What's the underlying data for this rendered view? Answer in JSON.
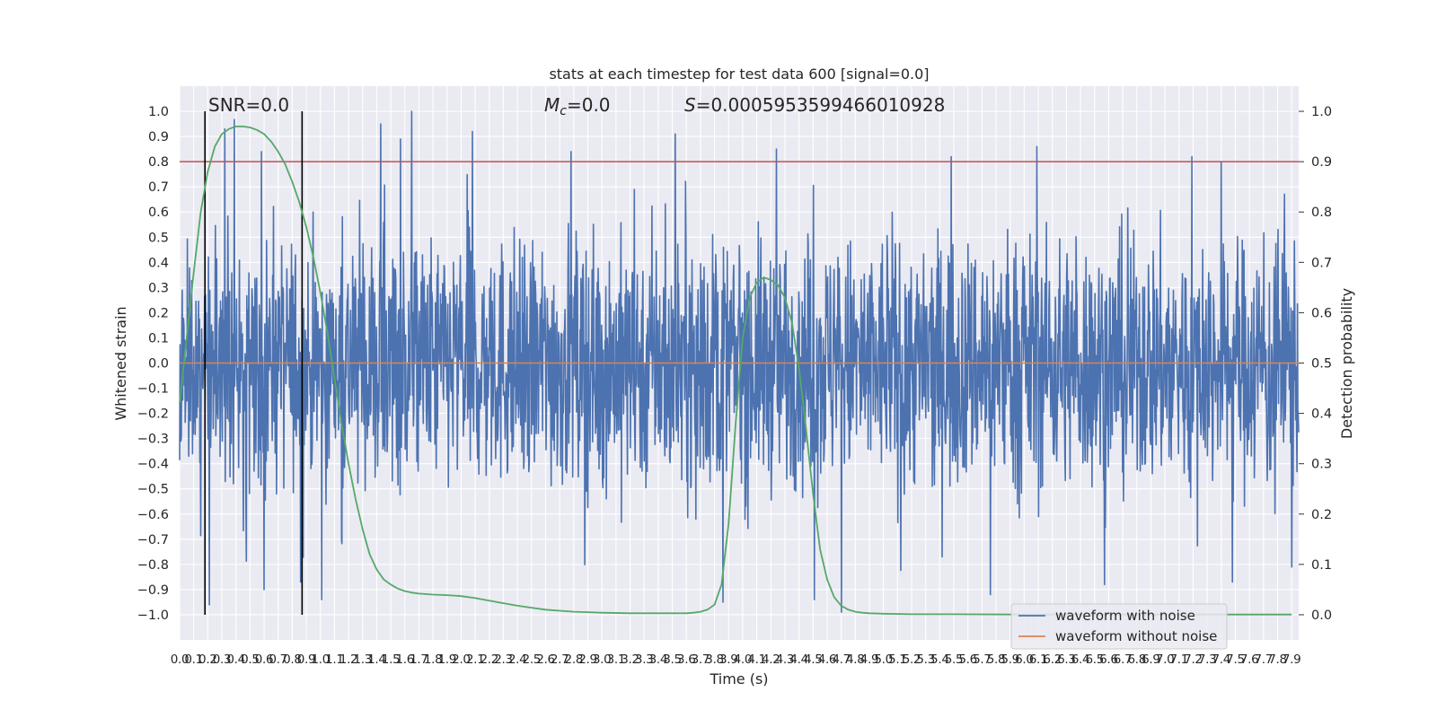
{
  "chart_data": {
    "type": "line",
    "title": "stats at each timestep for test data 600 [signal=0.0]",
    "xlabel": "Time (s)",
    "ylabel": "Whitened strain",
    "ylabel_right": "Detection probability",
    "xlim": [
      0.0,
      7.95
    ],
    "ylim": [
      -1.1,
      1.1
    ],
    "ylim_right": [
      -0.05,
      1.05
    ],
    "grid": true,
    "legend_placement": "lower right",
    "x_ticks": [
      0.0,
      0.1,
      0.2,
      0.3,
      0.4,
      0.5,
      0.6,
      0.7,
      0.8,
      0.9,
      1.0,
      1.1,
      1.2,
      1.3,
      1.4,
      1.5,
      1.6,
      1.7,
      1.8,
      1.9,
      2.0,
      2.1,
      2.2,
      2.3,
      2.4,
      2.5,
      2.6,
      2.7,
      2.8,
      2.9,
      3.0,
      3.1,
      3.2,
      3.3,
      3.4,
      3.5,
      3.6,
      3.7,
      3.8,
      3.9,
      4.0,
      4.1,
      4.2,
      4.3,
      4.4,
      4.5,
      4.6,
      4.7,
      4.8,
      4.9,
      5.0,
      5.1,
      5.2,
      5.3,
      5.4,
      5.5,
      5.6,
      5.7,
      5.8,
      5.9,
      6.0,
      6.1,
      6.2,
      6.3,
      6.4,
      6.5,
      6.6,
      6.7,
      6.8,
      6.9,
      7.0,
      7.1,
      7.2,
      7.3,
      7.4,
      7.5,
      7.6,
      7.7,
      7.8,
      7.9
    ],
    "y_ticks": [
      -1.0,
      -0.9,
      -0.8,
      -0.7,
      -0.6,
      -0.5,
      -0.4,
      -0.3,
      -0.2,
      -0.1,
      0.0,
      0.1,
      0.2,
      0.3,
      0.4,
      0.5,
      0.6,
      0.7,
      0.8,
      0.9,
      1.0
    ],
    "y_ticks_right": [
      0.0,
      0.1,
      0.2,
      0.3,
      0.4,
      0.5,
      0.6,
      0.7,
      0.8,
      0.9,
      1.0
    ],
    "annotations": {
      "snr": "SNR=0.0",
      "mc": "=0.0",
      "mc_symbol": "M",
      "mc_subscript": "c",
      "s_symbol": "S",
      "s": "=0.0005953599466010928"
    },
    "threshold": {
      "value": 0.9,
      "axis": "right",
      "color": "#c44e52"
    },
    "vlines": {
      "x": [
        0.18,
        0.87
      ],
      "ymin": -1.0,
      "ymax": 1.0,
      "color": "#000000"
    },
    "series": [
      {
        "name": "waveform with noise",
        "color": "#4c72b0",
        "axis": "left",
        "description": "dense white noise sampled densely across 0-7.95 s, core amplitude ~±0.35, spikes reaching about ±1.0",
        "peak_spikes": [
          {
            "x": 0.32,
            "y": 0.93
          },
          {
            "x": 0.58,
            "y": 0.84
          },
          {
            "x": 1.43,
            "y": 0.95
          },
          {
            "x": 1.57,
            "y": 0.89
          },
          {
            "x": 1.65,
            "y": 1.0
          },
          {
            "x": 2.08,
            "y": 0.92
          },
          {
            "x": 2.78,
            "y": 0.84
          },
          {
            "x": 3.52,
            "y": 0.91
          },
          {
            "x": 4.24,
            "y": 0.85
          },
          {
            "x": 5.48,
            "y": 0.82
          },
          {
            "x": 6.09,
            "y": 0.86
          },
          {
            "x": 7.19,
            "y": 0.82
          },
          {
            "x": 0.21,
            "y": -0.96
          },
          {
            "x": 0.6,
            "y": -0.9
          },
          {
            "x": 0.86,
            "y": -0.87
          },
          {
            "x": 1.01,
            "y": -0.94
          },
          {
            "x": 3.86,
            "y": -0.95
          },
          {
            "x": 4.51,
            "y": -0.94
          },
          {
            "x": 4.7,
            "y": -0.99
          },
          {
            "x": 5.76,
            "y": -0.92
          },
          {
            "x": 6.57,
            "y": -0.88
          },
          {
            "x": 7.48,
            "y": -0.87
          },
          {
            "x": 7.9,
            "y": -0.81
          }
        ]
      },
      {
        "name": "waveform without noise",
        "color": "#dd8452",
        "axis": "left",
        "x": [
          0.0,
          7.95
        ],
        "y": [
          0.0,
          0.0
        ]
      },
      {
        "name": "",
        "color": "#55a868",
        "axis": "right",
        "x": [
          0.0,
          0.05,
          0.1,
          0.15,
          0.2,
          0.25,
          0.3,
          0.35,
          0.4,
          0.45,
          0.5,
          0.55,
          0.6,
          0.65,
          0.7,
          0.75,
          0.8,
          0.85,
          0.9,
          0.95,
          1.0,
          1.05,
          1.1,
          1.15,
          1.2,
          1.25,
          1.3,
          1.35,
          1.4,
          1.45,
          1.5,
          1.55,
          1.6,
          1.65,
          1.7,
          1.8,
          1.9,
          2.0,
          2.1,
          2.2,
          2.3,
          2.4,
          2.5,
          2.6,
          2.7,
          2.8,
          2.9,
          3.0,
          3.2,
          3.4,
          3.6,
          3.65,
          3.7,
          3.75,
          3.8,
          3.85,
          3.9,
          3.95,
          4.0,
          4.05,
          4.1,
          4.15,
          4.2,
          4.25,
          4.3,
          4.35,
          4.4,
          4.45,
          4.5,
          4.55,
          4.6,
          4.65,
          4.7,
          4.75,
          4.8,
          4.85,
          4.9,
          5.0,
          5.2,
          5.5,
          6.0,
          6.5,
          7.0,
          7.5,
          7.9
        ],
        "y": [
          0.42,
          0.55,
          0.68,
          0.8,
          0.88,
          0.93,
          0.955,
          0.965,
          0.97,
          0.97,
          0.968,
          0.963,
          0.955,
          0.94,
          0.92,
          0.895,
          0.86,
          0.82,
          0.77,
          0.71,
          0.64,
          0.56,
          0.47,
          0.38,
          0.3,
          0.23,
          0.17,
          0.12,
          0.09,
          0.07,
          0.06,
          0.052,
          0.047,
          0.044,
          0.042,
          0.04,
          0.039,
          0.037,
          0.033,
          0.028,
          0.023,
          0.018,
          0.014,
          0.01,
          0.008,
          0.006,
          0.005,
          0.004,
          0.003,
          0.003,
          0.003,
          0.004,
          0.006,
          0.01,
          0.02,
          0.06,
          0.18,
          0.38,
          0.55,
          0.63,
          0.66,
          0.67,
          0.665,
          0.655,
          0.63,
          0.58,
          0.49,
          0.37,
          0.24,
          0.13,
          0.07,
          0.035,
          0.018,
          0.01,
          0.006,
          0.004,
          0.003,
          0.002,
          0.001,
          0.001,
          0.0005,
          0.0005,
          0.0005,
          0.0005,
          0.0005
        ]
      }
    ]
  }
}
